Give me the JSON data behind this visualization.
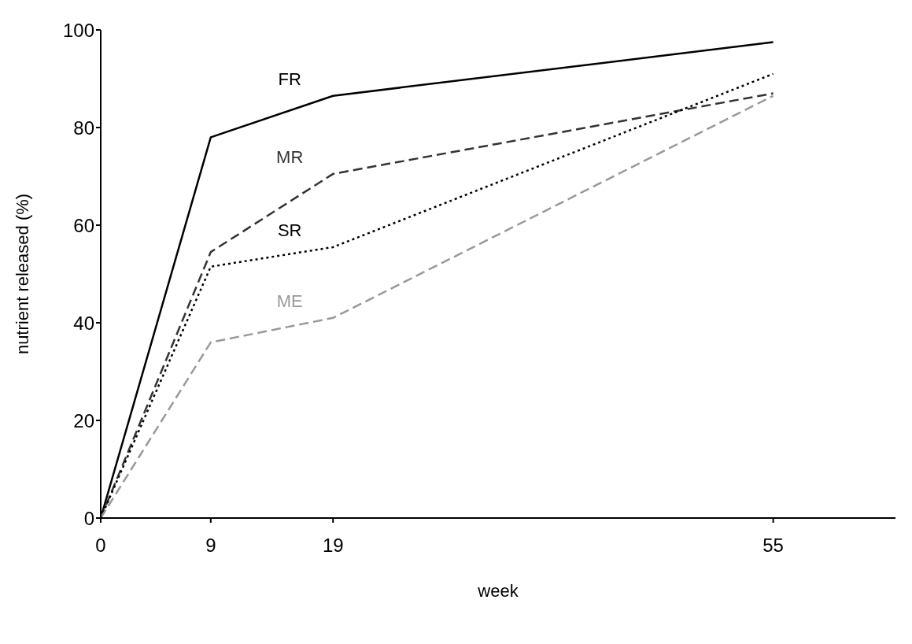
{
  "chart_data": {
    "type": "line",
    "xlabel": "week",
    "ylabel": "nutrient released (%)",
    "x": [
      0,
      9,
      19,
      55
    ],
    "xlim": [
      0,
      65
    ],
    "xticks": [
      0,
      9,
      19,
      55
    ],
    "ylim": [
      0,
      100
    ],
    "yticks": [
      0,
      20,
      40,
      60,
      80,
      100
    ],
    "grid": false,
    "legend": false,
    "marker": "none",
    "series": [
      {
        "name": "FR",
        "color": "#000000",
        "line_style": "solid",
        "values": [
          0,
          78,
          86.5,
          97.5
        ]
      },
      {
        "name": "MR",
        "color": "#333333",
        "line_style": "dashed",
        "values": [
          0,
          54.5,
          70.5,
          87
        ]
      },
      {
        "name": "SR",
        "color": "#000000",
        "line_style": "dotted",
        "values": [
          0,
          51.5,
          55.5,
          91
        ]
      },
      {
        "name": "ME",
        "color": "#999999",
        "line_style": "dashed",
        "values": [
          0,
          36,
          41,
          86.5
        ]
      }
    ]
  }
}
